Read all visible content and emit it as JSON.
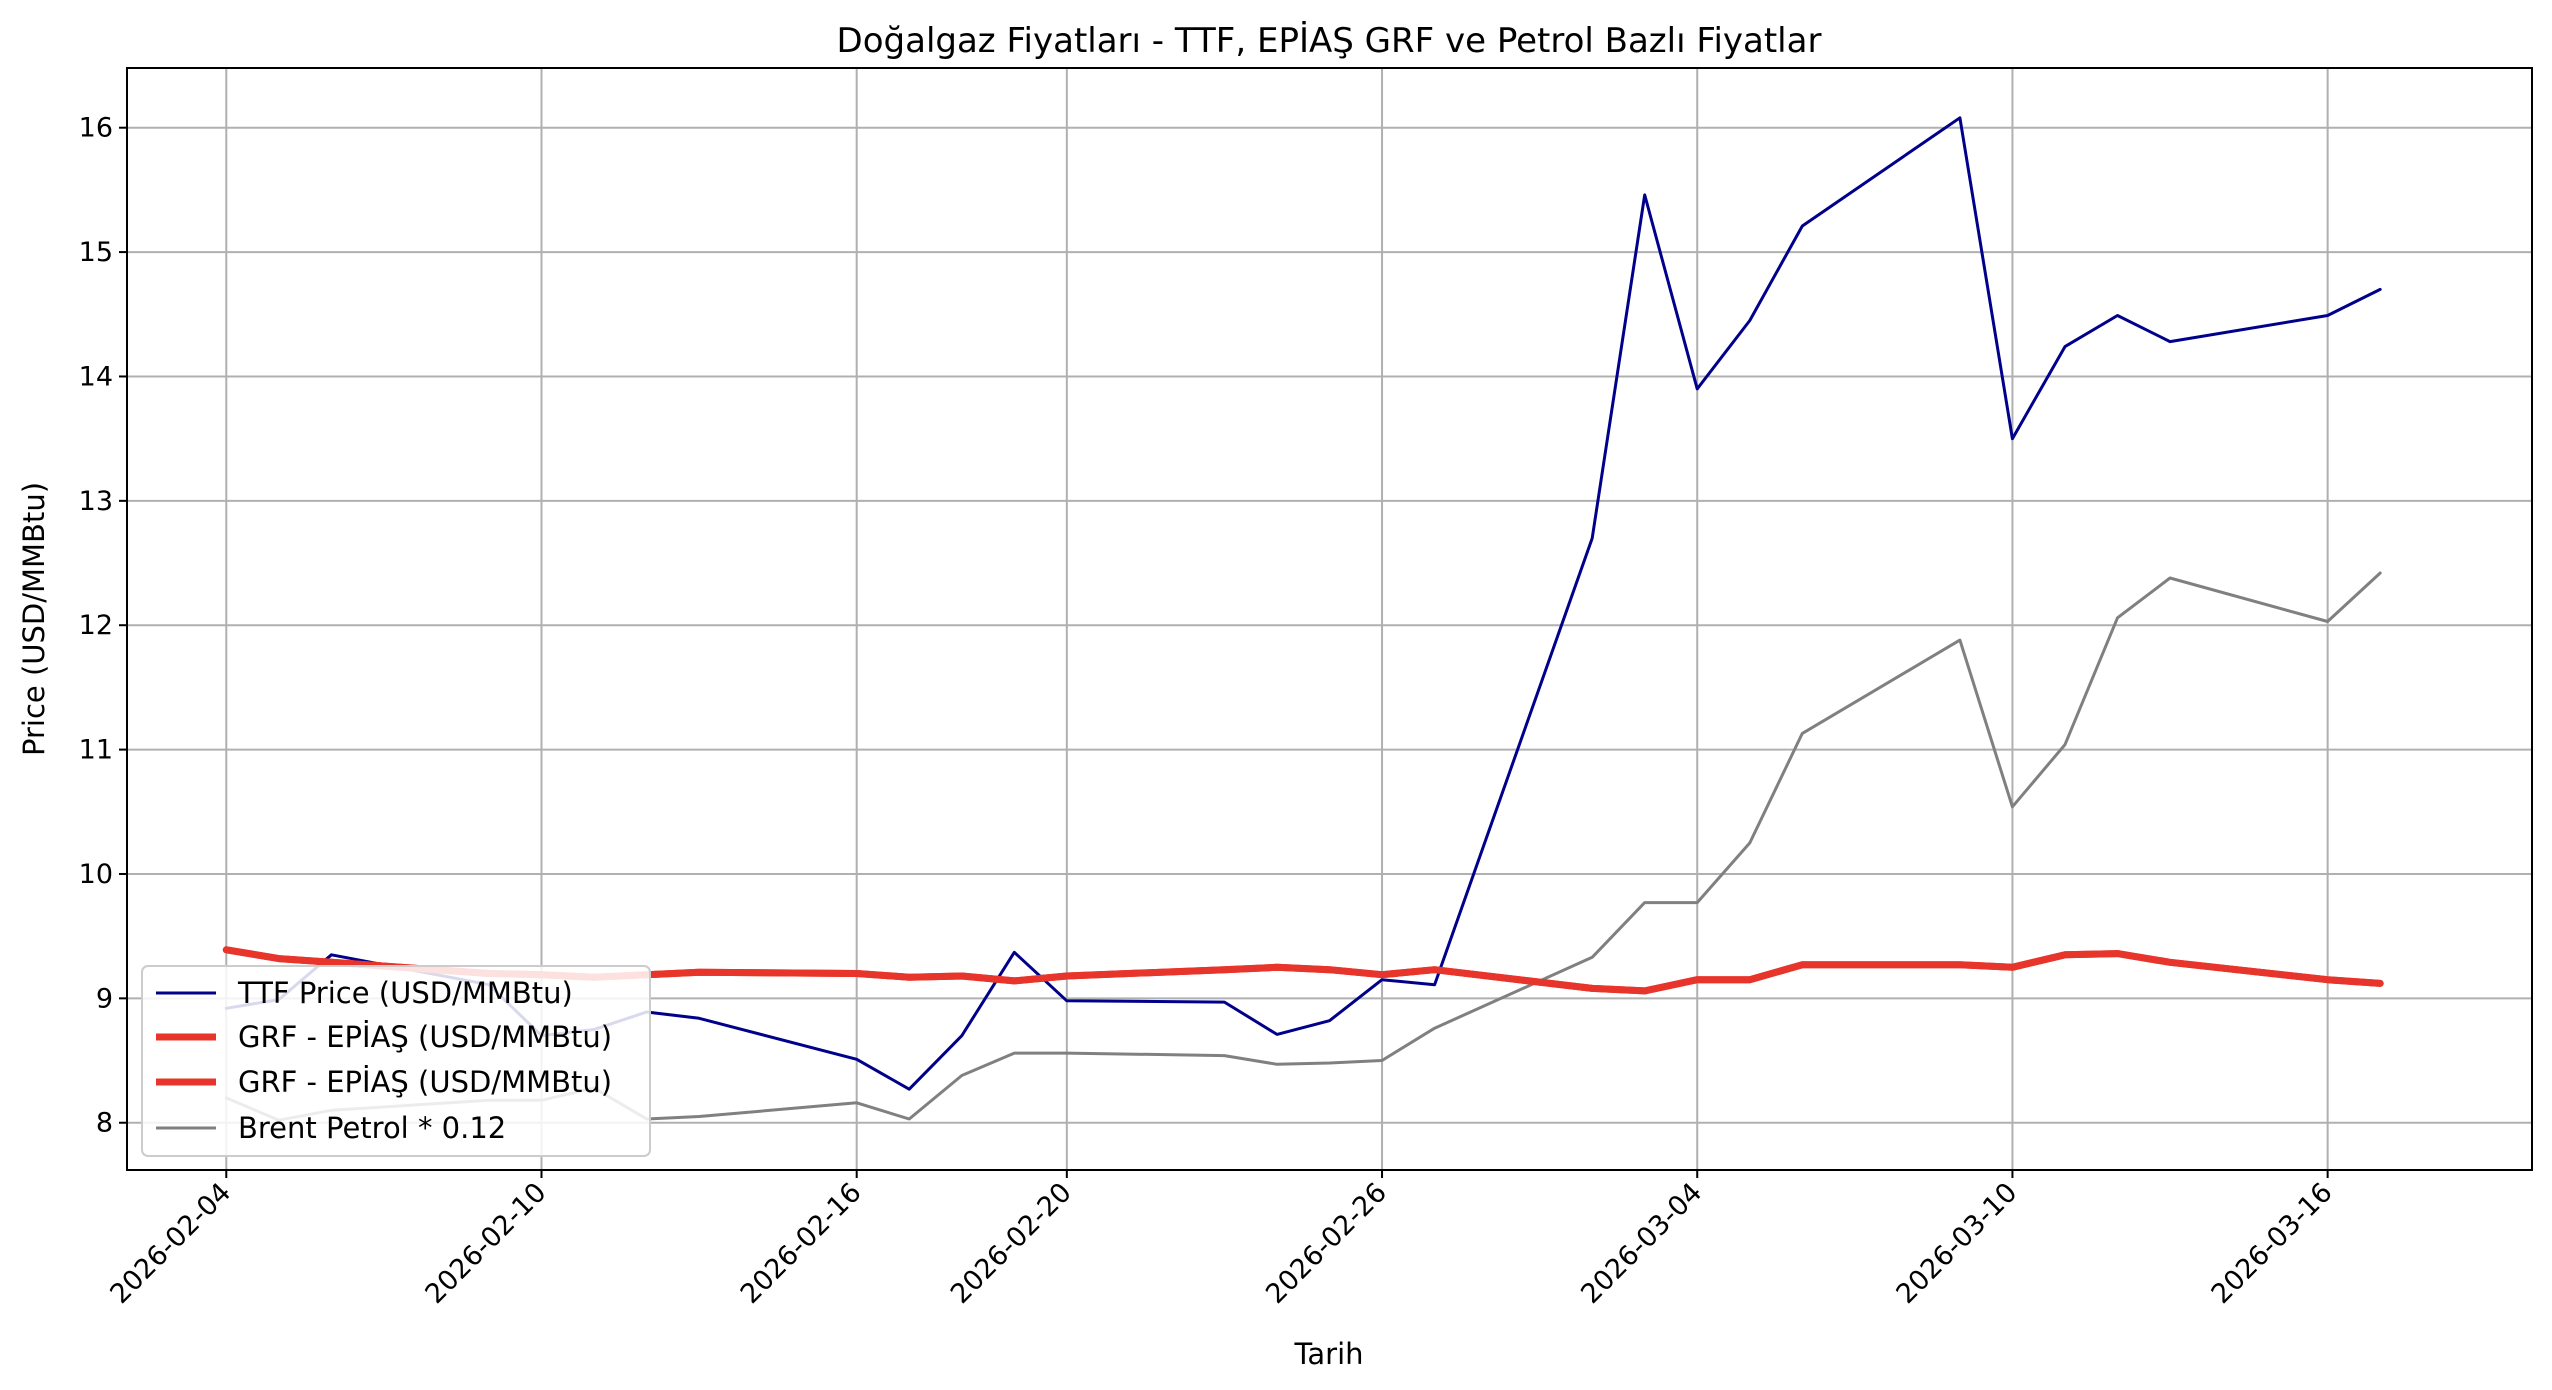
{
  "chart_data": {
    "type": "line",
    "title": "Doğalgaz Fiyatları - TTF, EPİAŞ GRF ve Petrol Bazlı Fiyatlar",
    "xlabel": "Tarih",
    "ylabel": "Price (USD/MMBtu)",
    "x": [
      "2026-02-04",
      "2026-02-05",
      "2026-02-06",
      "2026-02-09",
      "2026-02-10",
      "2026-02-11",
      "2026-02-12",
      "2026-02-13",
      "2026-02-16",
      "2026-02-17",
      "2026-02-18",
      "2026-02-19",
      "2026-02-20",
      "2026-02-23",
      "2026-02-24",
      "2026-02-25",
      "2026-02-26",
      "2026-02-27",
      "2026-03-02",
      "2026-03-03",
      "2026-03-04",
      "2026-03-05",
      "2026-03-06",
      "2026-03-09",
      "2026-03-10",
      "2026-03-11",
      "2026-03-12",
      "2026-03-13",
      "2026-03-16",
      "2026-03-17"
    ],
    "x_tick_labels": [
      "2026-02-04",
      "2026-02-10",
      "2026-02-16",
      "2026-02-20",
      "2026-02-26",
      "2026-03-04",
      "2026-03-10",
      "2026-03-16"
    ],
    "y_ticks": [
      8,
      9,
      10,
      11,
      12,
      13,
      14,
      15,
      16
    ],
    "ylim": [
      7.62,
      16.48
    ],
    "grid": true,
    "legend_position": "lower-left",
    "series": [
      {
        "name": "TTF Price (USD/MMBtu)",
        "color": "#00008b",
        "values": [
          8.92,
          8.99,
          9.35,
          9.11,
          8.7,
          8.75,
          8.89,
          8.84,
          8.51,
          8.27,
          8.7,
          9.37,
          8.98,
          8.97,
          8.71,
          8.82,
          9.15,
          9.11,
          12.7,
          15.46,
          13.9,
          14.45,
          15.21,
          16.08,
          13.5,
          14.24,
          14.49,
          14.28,
          14.49,
          14.7
        ]
      },
      {
        "name": "GRF - EPİAŞ (USD/MMBtu)",
        "color": "#e8352b",
        "values": [
          9.39,
          9.32,
          9.29,
          9.2,
          9.19,
          9.17,
          9.19,
          9.21,
          9.2,
          9.17,
          9.18,
          9.14,
          9.18,
          9.23,
          9.25,
          9.23,
          9.19,
          9.23,
          9.08,
          9.06,
          9.15,
          9.15,
          9.27,
          9.27,
          9.25,
          9.35,
          9.36,
          9.29,
          9.15,
          9.12
        ]
      },
      {
        "name": "GRF - EPİAŞ (USD/MMBtu)",
        "color": "#e8352b",
        "values": [
          9.39,
          9.32,
          9.29,
          9.2,
          9.19,
          9.17,
          9.19,
          9.21,
          9.2,
          9.17,
          9.18,
          9.14,
          9.18,
          9.23,
          9.25,
          9.23,
          9.19,
          9.23,
          9.08,
          9.06,
          9.15,
          9.15,
          9.27,
          9.27,
          9.25,
          9.35,
          9.36,
          9.29,
          9.15,
          9.12
        ]
      },
      {
        "name": "Brent Petrol * 0.12",
        "color": "#808080",
        "values": [
          8.2,
          8.02,
          8.1,
          8.18,
          8.18,
          8.28,
          8.03,
          8.05,
          8.16,
          8.03,
          8.38,
          8.56,
          8.56,
          8.54,
          8.47,
          8.48,
          8.5,
          8.76,
          9.33,
          9.77,
          9.77,
          10.25,
          11.13,
          11.88,
          10.54,
          11.04,
          12.06,
          12.38,
          12.03,
          12.42
        ]
      }
    ]
  }
}
